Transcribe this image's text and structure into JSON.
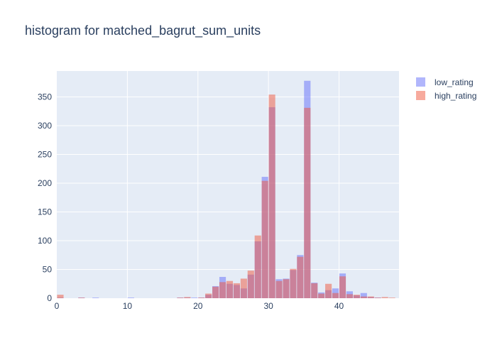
{
  "title": "histogram for matched_bagrut_sum_units",
  "chart_data": {
    "type": "bar",
    "barmode": "overlay",
    "xlim": [
      0,
      48.5
    ],
    "ylim": [
      0,
      395
    ],
    "x_ticks": [
      0,
      10,
      20,
      30,
      40
    ],
    "y_ticks": [
      0,
      50,
      100,
      150,
      200,
      250,
      300,
      350
    ],
    "bin_width": 1,
    "grid": true,
    "legend_position": "top-right",
    "series": [
      {
        "name": "low_rating",
        "color": "#636efa",
        "opacity": 0.5,
        "bins": [
          [
            0,
            1
          ],
          [
            3,
            1
          ],
          [
            5,
            1
          ],
          [
            10,
            1
          ],
          [
            17,
            1
          ],
          [
            18,
            1
          ],
          [
            19,
            1
          ],
          [
            20,
            1
          ],
          [
            21,
            6
          ],
          [
            22,
            21
          ],
          [
            23,
            37
          ],
          [
            24,
            25
          ],
          [
            25,
            23
          ],
          [
            26,
            17
          ],
          [
            27,
            41
          ],
          [
            28,
            99
          ],
          [
            29,
            211
          ],
          [
            30,
            332
          ],
          [
            31,
            33
          ],
          [
            32,
            34
          ],
          [
            33,
            49
          ],
          [
            34,
            75
          ],
          [
            35,
            378
          ],
          [
            36,
            27
          ],
          [
            37,
            10
          ],
          [
            38,
            14
          ],
          [
            39,
            17
          ],
          [
            40,
            43
          ],
          [
            41,
            12
          ],
          [
            42,
            5
          ],
          [
            43,
            9
          ],
          [
            44,
            2
          ],
          [
            45,
            1
          ]
        ]
      },
      {
        "name": "high_rating",
        "color": "#ef553b",
        "opacity": 0.5,
        "bins": [
          [
            0,
            6
          ],
          [
            3,
            1
          ],
          [
            17,
            1
          ],
          [
            18,
            2
          ],
          [
            20,
            1
          ],
          [
            21,
            8
          ],
          [
            22,
            20
          ],
          [
            23,
            28
          ],
          [
            24,
            30
          ],
          [
            25,
            26
          ],
          [
            26,
            34
          ],
          [
            27,
            48
          ],
          [
            28,
            109
          ],
          [
            29,
            204
          ],
          [
            30,
            354
          ],
          [
            31,
            30
          ],
          [
            32,
            33
          ],
          [
            33,
            51
          ],
          [
            34,
            72
          ],
          [
            35,
            331
          ],
          [
            36,
            26
          ],
          [
            37,
            8
          ],
          [
            38,
            25
          ],
          [
            39,
            9
          ],
          [
            40,
            38
          ],
          [
            41,
            7
          ],
          [
            42,
            6
          ],
          [
            43,
            3
          ],
          [
            44,
            3
          ],
          [
            45,
            1
          ],
          [
            46,
            2
          ],
          [
            47,
            1
          ]
        ]
      }
    ]
  }
}
